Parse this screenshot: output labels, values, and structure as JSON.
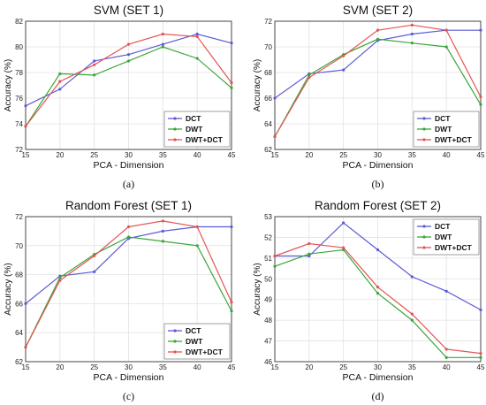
{
  "chart_data": [
    {
      "type": "line",
      "title": "SVM (SET 1)",
      "caption": "(a)",
      "xlabel": "PCA - Dimension",
      "ylabel": "Accuracy (%)",
      "x": [
        15,
        20,
        25,
        30,
        35,
        40,
        45
      ],
      "xticks": [
        "15",
        "20",
        "25",
        "30",
        "35",
        "40",
        "45"
      ],
      "ylim": [
        72,
        82
      ],
      "yticks": [
        "72",
        "74",
        "76",
        "78",
        "80",
        "82"
      ],
      "grid": true,
      "legend_position": "bottom-right",
      "series": [
        {
          "name": "DCT",
          "color": "#5b5bd6",
          "values": [
            75.4,
            76.7,
            78.9,
            79.4,
            80.2,
            81.0,
            80.3
          ]
        },
        {
          "name": "DWT",
          "color": "#3aa63a",
          "values": [
            73.8,
            77.9,
            77.8,
            78.9,
            80.0,
            79.1,
            76.8
          ]
        },
        {
          "name": "DWT+DCT",
          "color": "#e35555",
          "values": [
            73.8,
            77.3,
            78.6,
            80.2,
            81.0,
            80.8,
            77.2
          ]
        }
      ]
    },
    {
      "type": "line",
      "title": "SVM (SET 2)",
      "caption": "(b)",
      "xlabel": "PCA - Dimension",
      "ylabel": "Accuracy (%)",
      "x": [
        15,
        20,
        25,
        30,
        35,
        40,
        45
      ],
      "xticks": [
        "15",
        "20",
        "25",
        "30",
        "35",
        "40",
        "45"
      ],
      "ylim": [
        62,
        72
      ],
      "yticks": [
        "62",
        "64",
        "66",
        "68",
        "70",
        "72"
      ],
      "grid": true,
      "legend_position": "bottom-right",
      "series": [
        {
          "name": "DCT",
          "color": "#5b5bd6",
          "values": [
            66.0,
            67.9,
            68.2,
            70.5,
            71.0,
            71.3,
            71.3
          ]
        },
        {
          "name": "DWT",
          "color": "#3aa63a",
          "values": [
            63.0,
            67.8,
            69.4,
            70.6,
            70.3,
            70.0,
            65.5
          ]
        },
        {
          "name": "DWT+DCT",
          "color": "#e35555",
          "values": [
            63.0,
            67.6,
            69.3,
            71.3,
            71.7,
            71.3,
            66.1
          ]
        }
      ]
    },
    {
      "type": "line",
      "title": "Random Forest (SET 1)",
      "caption": "(c)",
      "xlabel": "PCA - Dimension",
      "ylabel": "Accuracy (%)",
      "x": [
        15,
        20,
        25,
        30,
        35,
        40,
        45
      ],
      "xticks": [
        "15",
        "20",
        "25",
        "30",
        "35",
        "40",
        "45"
      ],
      "ylim": [
        62,
        72
      ],
      "yticks": [
        "62",
        "64",
        "66",
        "68",
        "70",
        "72"
      ],
      "grid": true,
      "legend_position": "bottom-right",
      "series": [
        {
          "name": "DCT",
          "color": "#5b5bd6",
          "values": [
            66.0,
            67.9,
            68.2,
            70.5,
            71.0,
            71.3,
            71.3
          ]
        },
        {
          "name": "DWT",
          "color": "#3aa63a",
          "values": [
            63.0,
            67.8,
            69.4,
            70.6,
            70.3,
            70.0,
            65.5
          ]
        },
        {
          "name": "DWT+DCT",
          "color": "#e35555",
          "values": [
            63.0,
            67.6,
            69.3,
            71.3,
            71.7,
            71.3,
            66.1
          ]
        }
      ]
    },
    {
      "type": "line",
      "title": "Random Forest (SET 2)",
      "caption": "(d)",
      "xlabel": "PCA - Dimension",
      "ylabel": "Accuracy (%)",
      "x": [
        15,
        20,
        25,
        30,
        35,
        40,
        45
      ],
      "xticks": [
        "15",
        "20",
        "25",
        "30",
        "35",
        "40",
        "45"
      ],
      "ylim": [
        46,
        53
      ],
      "yticks": [
        "46",
        "47",
        "48",
        "49",
        "50",
        "51",
        "52",
        "53"
      ],
      "grid": true,
      "legend_position": "top-right",
      "series": [
        {
          "name": "DCT",
          "color": "#5b5bd6",
          "values": [
            51.1,
            51.1,
            52.7,
            51.4,
            50.1,
            49.4,
            48.5
          ]
        },
        {
          "name": "DWT",
          "color": "#3aa63a",
          "values": [
            50.6,
            51.2,
            51.4,
            49.3,
            48.0,
            46.2,
            46.2
          ]
        },
        {
          "name": "DWT+DCT",
          "color": "#e35555",
          "values": [
            51.1,
            51.7,
            51.5,
            49.6,
            48.3,
            46.6,
            46.4
          ]
        }
      ]
    }
  ]
}
